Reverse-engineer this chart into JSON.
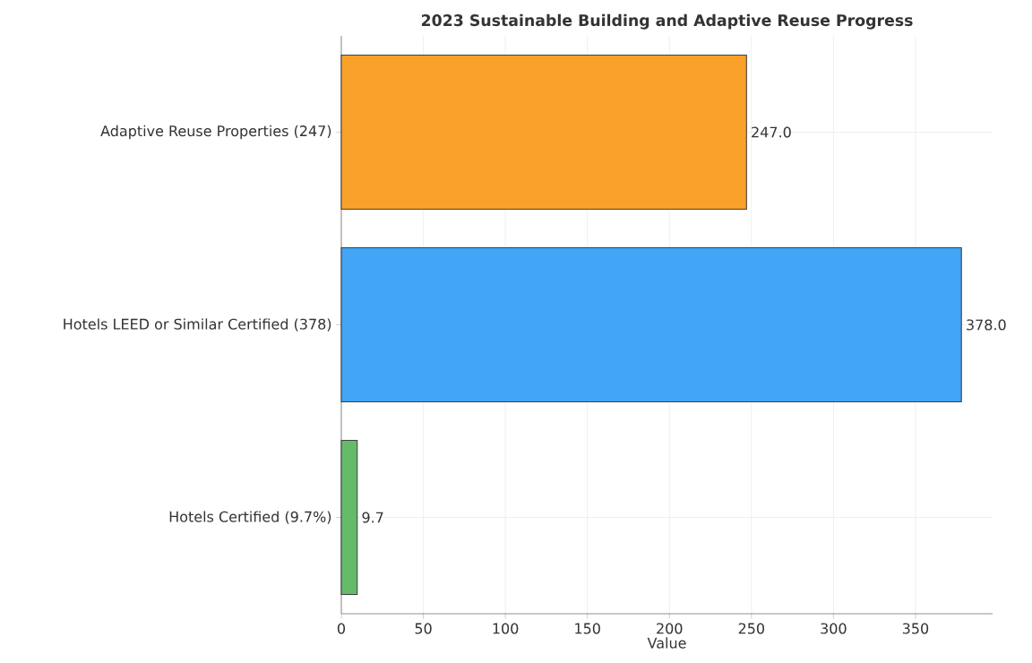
{
  "chart_data": {
    "type": "bar",
    "orientation": "horizontal",
    "title": "2023 Sustainable Building and Adaptive Reuse Progress",
    "xlabel": "Value",
    "categories": [
      "Adaptive Reuse Properties (247)",
      "Hotels LEED or Similar Certified (378)",
      "Hotels Certified (9.7%)"
    ],
    "values": [
      247,
      378,
      9.7
    ],
    "value_labels": [
      "247.0",
      "378.0",
      "9.7"
    ],
    "colors": [
      "#f9a12a",
      "#42a5f5",
      "#66bb6a"
    ],
    "xlim": [
      0,
      397
    ],
    "xticks": [
      0,
      50,
      100,
      150,
      200,
      250,
      300,
      350
    ],
    "grid": true
  }
}
